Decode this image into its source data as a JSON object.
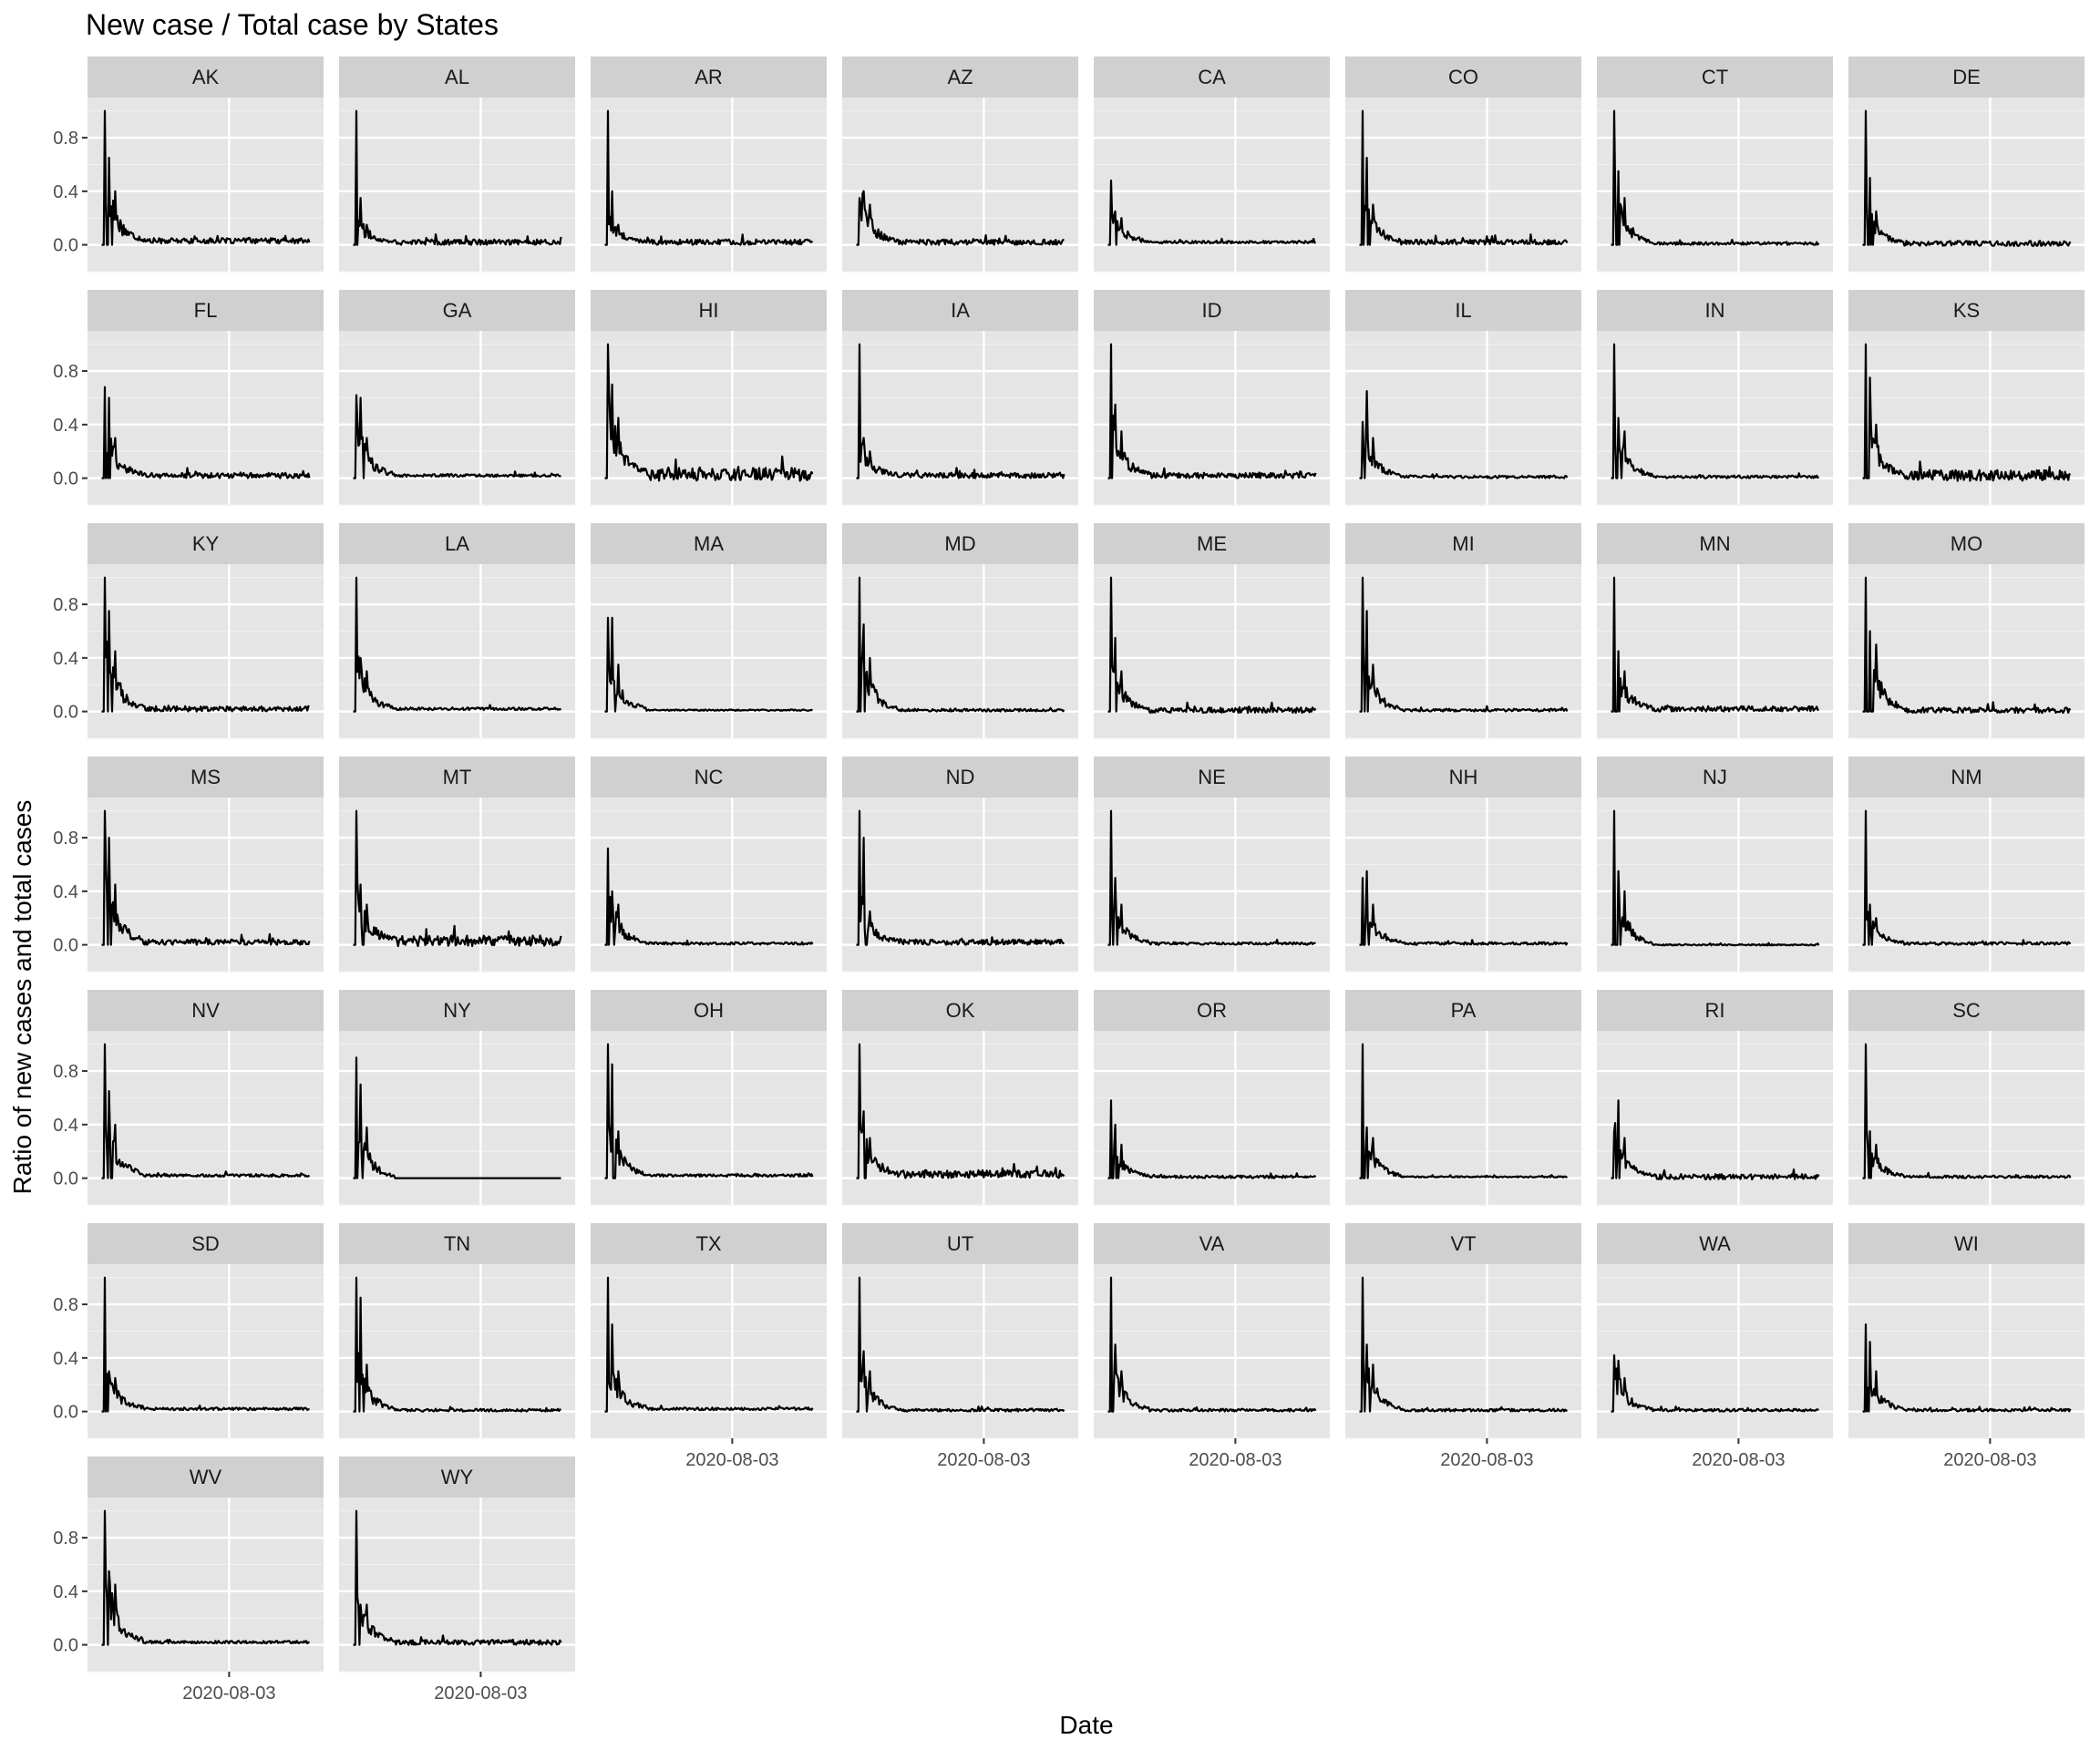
{
  "chart_data": {
    "type": "line",
    "title": "New case / Total case by States",
    "xlabel": "Date",
    "ylabel": "Ratio of new cases and total cases",
    "x_tick_label": "2020-08-03",
    "y_ticks": [
      "0.0",
      "0.4",
      "0.8"
    ],
    "ylim": [
      -0.2,
      1.1
    ],
    "grid": true,
    "series_color": "#000000",
    "panel_background": "#e5e5e5",
    "strip_background": "#d0d0d0",
    "panels": [
      {
        "state": "AK",
        "peak": 1.0,
        "bumps": [
          0.65,
          0.4
        ],
        "tail": 0.03,
        "noise": 0.02
      },
      {
        "state": "AL",
        "peak": 1.0,
        "bumps": [
          0.35,
          0.15
        ],
        "tail": 0.02,
        "noise": 0.02
      },
      {
        "state": "AR",
        "peak": 1.0,
        "bumps": [
          0.4,
          0.15
        ],
        "tail": 0.02,
        "noise": 0.02
      },
      {
        "state": "AZ",
        "peak": 0.35,
        "bumps": [
          0.4,
          0.3
        ],
        "tail": 0.02,
        "noise": 0.02
      },
      {
        "state": "CA",
        "peak": 0.48,
        "bumps": [
          0.25,
          0.2
        ],
        "tail": 0.02,
        "noise": 0.01
      },
      {
        "state": "CO",
        "peak": 1.0,
        "bumps": [
          0.65,
          0.3
        ],
        "tail": 0.02,
        "noise": 0.02
      },
      {
        "state": "CT",
        "peak": 1.0,
        "bumps": [
          0.55,
          0.35
        ],
        "tail": 0.01,
        "noise": 0.01
      },
      {
        "state": "DE",
        "peak": 1.0,
        "bumps": [
          0.5,
          0.25
        ],
        "tail": 0.01,
        "noise": 0.02
      },
      {
        "state": "FL",
        "peak": 0.68,
        "bumps": [
          0.6,
          0.3
        ],
        "tail": 0.02,
        "noise": 0.02
      },
      {
        "state": "GA",
        "peak": 0.62,
        "bumps": [
          0.6,
          0.3
        ],
        "tail": 0.02,
        "noise": 0.01
      },
      {
        "state": "HI",
        "peak": 1.0,
        "bumps": [
          0.7,
          0.45
        ],
        "tail": 0.03,
        "noise": 0.05
      },
      {
        "state": "IA",
        "peak": 1.0,
        "bumps": [
          0.3,
          0.2
        ],
        "tail": 0.02,
        "noise": 0.02
      },
      {
        "state": "ID",
        "peak": 1.0,
        "bumps": [
          0.55,
          0.35
        ],
        "tail": 0.02,
        "noise": 0.02
      },
      {
        "state": "IL",
        "peak": 0.42,
        "bumps": [
          0.65,
          0.3
        ],
        "tail": 0.01,
        "noise": 0.01
      },
      {
        "state": "IN",
        "peak": 1.0,
        "bumps": [
          0.45,
          0.35
        ],
        "tail": 0.01,
        "noise": 0.01
      },
      {
        "state": "KS",
        "peak": 1.0,
        "bumps": [
          0.75,
          0.4
        ],
        "tail": 0.02,
        "noise": 0.04
      },
      {
        "state": "KY",
        "peak": 1.0,
        "bumps": [
          0.75,
          0.45
        ],
        "tail": 0.02,
        "noise": 0.02
      },
      {
        "state": "LA",
        "peak": 1.0,
        "bumps": [
          0.4,
          0.3
        ],
        "tail": 0.02,
        "noise": 0.01
      },
      {
        "state": "MA",
        "peak": 0.7,
        "bumps": [
          0.7,
          0.35
        ],
        "tail": 0.01,
        "noise": 0.005
      },
      {
        "state": "MD",
        "peak": 1.0,
        "bumps": [
          0.65,
          0.4
        ],
        "tail": 0.01,
        "noise": 0.01
      },
      {
        "state": "ME",
        "peak": 1.0,
        "bumps": [
          0.55,
          0.3
        ],
        "tail": 0.01,
        "noise": 0.02
      },
      {
        "state": "MI",
        "peak": 1.0,
        "bumps": [
          0.75,
          0.35
        ],
        "tail": 0.01,
        "noise": 0.01
      },
      {
        "state": "MN",
        "peak": 1.0,
        "bumps": [
          0.45,
          0.3
        ],
        "tail": 0.02,
        "noise": 0.02
      },
      {
        "state": "MO",
        "peak": 1.0,
        "bumps": [
          0.6,
          0.5
        ],
        "tail": 0.01,
        "noise": 0.02
      },
      {
        "state": "MS",
        "peak": 1.0,
        "bumps": [
          0.8,
          0.45
        ],
        "tail": 0.02,
        "noise": 0.02
      },
      {
        "state": "MT",
        "peak": 1.0,
        "bumps": [
          0.45,
          0.3
        ],
        "tail": 0.03,
        "noise": 0.04
      },
      {
        "state": "NC",
        "peak": 0.72,
        "bumps": [
          0.4,
          0.3
        ],
        "tail": 0.01,
        "noise": 0.01
      },
      {
        "state": "ND",
        "peak": 1.0,
        "bumps": [
          0.8,
          0.25
        ],
        "tail": 0.02,
        "noise": 0.02
      },
      {
        "state": "NE",
        "peak": 1.0,
        "bumps": [
          0.5,
          0.3
        ],
        "tail": 0.01,
        "noise": 0.01
      },
      {
        "state": "NH",
        "peak": 0.5,
        "bumps": [
          0.55,
          0.3
        ],
        "tail": 0.01,
        "noise": 0.01
      },
      {
        "state": "NJ",
        "peak": 1.0,
        "bumps": [
          0.55,
          0.4
        ],
        "tail": 0.0,
        "noise": 0.005
      },
      {
        "state": "NM",
        "peak": 1.0,
        "bumps": [
          0.3,
          0.2
        ],
        "tail": 0.01,
        "noise": 0.01
      },
      {
        "state": "NV",
        "peak": 1.0,
        "bumps": [
          0.65,
          0.4
        ],
        "tail": 0.02,
        "noise": 0.01
      },
      {
        "state": "NY",
        "peak": 0.9,
        "bumps": [
          0.7,
          0.38
        ],
        "tail": 0.0,
        "noise": 0.0
      },
      {
        "state": "OH",
        "peak": 1.0,
        "bumps": [
          0.85,
          0.35
        ],
        "tail": 0.02,
        "noise": 0.01
      },
      {
        "state": "OK",
        "peak": 1.0,
        "bumps": [
          0.5,
          0.3
        ],
        "tail": 0.03,
        "noise": 0.03
      },
      {
        "state": "OR",
        "peak": 0.58,
        "bumps": [
          0.4,
          0.25
        ],
        "tail": 0.01,
        "noise": 0.01
      },
      {
        "state": "PA",
        "peak": 1.0,
        "bumps": [
          0.38,
          0.3
        ],
        "tail": 0.01,
        "noise": 0.005
      },
      {
        "state": "RI",
        "peak": 0.35,
        "bumps": [
          0.58,
          0.3
        ],
        "tail": 0.01,
        "noise": 0.02
      },
      {
        "state": "SC",
        "peak": 1.0,
        "bumps": [
          0.35,
          0.25
        ],
        "tail": 0.01,
        "noise": 0.01
      },
      {
        "state": "SD",
        "peak": 1.0,
        "bumps": [
          0.3,
          0.25
        ],
        "tail": 0.02,
        "noise": 0.01
      },
      {
        "state": "TN",
        "peak": 1.0,
        "bumps": [
          0.85,
          0.35
        ],
        "tail": 0.01,
        "noise": 0.01
      },
      {
        "state": "TX",
        "peak": 1.0,
        "bumps": [
          0.65,
          0.3
        ],
        "tail": 0.02,
        "noise": 0.01
      },
      {
        "state": "UT",
        "peak": 1.0,
        "bumps": [
          0.45,
          0.3
        ],
        "tail": 0.01,
        "noise": 0.01
      },
      {
        "state": "VA",
        "peak": 1.0,
        "bumps": [
          0.5,
          0.3
        ],
        "tail": 0.01,
        "noise": 0.01
      },
      {
        "state": "VT",
        "peak": 1.0,
        "bumps": [
          0.5,
          0.35
        ],
        "tail": 0.01,
        "noise": 0.01
      },
      {
        "state": "WA",
        "peak": 0.42,
        "bumps": [
          0.38,
          0.25
        ],
        "tail": 0.01,
        "noise": 0.01
      },
      {
        "state": "WI",
        "peak": 0.65,
        "bumps": [
          0.52,
          0.3
        ],
        "tail": 0.01,
        "noise": 0.01
      },
      {
        "state": "WV",
        "peak": 1.0,
        "bumps": [
          0.55,
          0.45
        ],
        "tail": 0.02,
        "noise": 0.01
      },
      {
        "state": "WY",
        "peak": 1.0,
        "bumps": [
          0.3,
          0.3
        ],
        "tail": 0.02,
        "noise": 0.02
      }
    ]
  }
}
